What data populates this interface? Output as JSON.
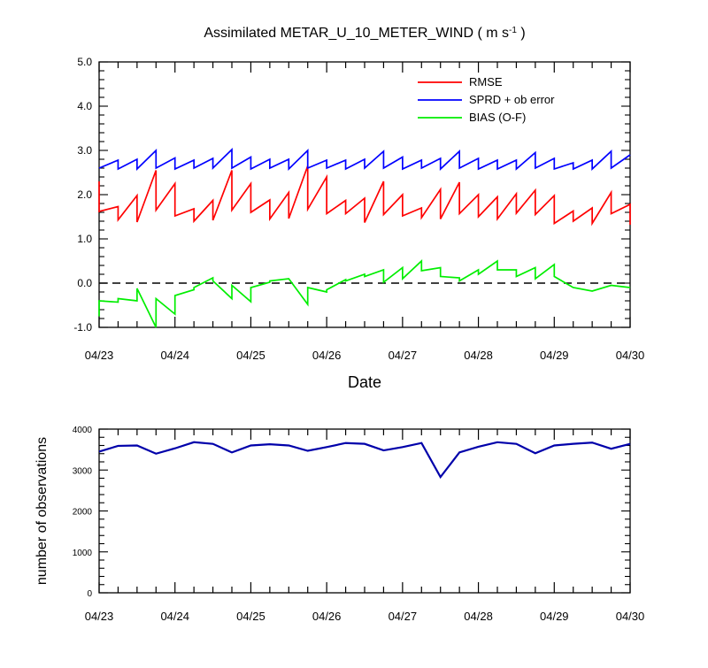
{
  "chart_data": [
    {
      "type": "line",
      "title": "Assimilated METAR_U_10_METER_WIND ( m s",
      "title_superscript": "-1",
      "title_end": " )",
      "xlabel": "Date",
      "ylabel": "",
      "ylim": [
        -1.0,
        5.0
      ],
      "yticks": [
        -1.0,
        0.0,
        1.0,
        2.0,
        3.0,
        4.0,
        5.0
      ],
      "ytick_labels": [
        "-1.0",
        "0.0",
        "1.0",
        "2.0",
        "3.0",
        "4.0",
        "5.0"
      ],
      "xlim": [
        0,
        7
      ],
      "xticks": [
        0,
        1,
        2,
        3,
        4,
        5,
        6,
        7
      ],
      "xtick_labels": [
        "04/23",
        "04/24",
        "04/25",
        "04/26",
        "04/27",
        "04/28",
        "04/29",
        "04/30"
      ],
      "zero_line": "dashed",
      "legend_position": "top-right",
      "colors": {
        "rmse": "#ff0000",
        "sprd": "#0000ff",
        "bias": "#00ee00",
        "zero": "#000000"
      },
      "series": [
        {
          "name": "RMSE",
          "color": "#ff0000",
          "points": [
            [
              0.0,
              2.3
            ],
            [
              0.0,
              1.62
            ],
            [
              0.25,
              1.73
            ],
            [
              0.25,
              1.43
            ],
            [
              0.5,
              1.98
            ],
            [
              0.5,
              1.38
            ],
            [
              0.75,
              2.55
            ],
            [
              0.75,
              1.65
            ],
            [
              1.0,
              2.25
            ],
            [
              1.0,
              1.52
            ],
            [
              1.25,
              1.68
            ],
            [
              1.25,
              1.4
            ],
            [
              1.5,
              1.87
            ],
            [
              1.5,
              1.42
            ],
            [
              1.75,
              2.55
            ],
            [
              1.75,
              1.65
            ],
            [
              2.0,
              2.25
            ],
            [
              2.0,
              1.6
            ],
            [
              2.25,
              1.88
            ],
            [
              2.25,
              1.45
            ],
            [
              2.5,
              2.05
            ],
            [
              2.5,
              1.46
            ],
            [
              2.75,
              2.65
            ],
            [
              2.75,
              1.67
            ],
            [
              3.0,
              2.4
            ],
            [
              3.0,
              1.57
            ],
            [
              3.25,
              1.87
            ],
            [
              3.25,
              1.57
            ],
            [
              3.5,
              1.92
            ],
            [
              3.5,
              1.37
            ],
            [
              3.75,
              2.3
            ],
            [
              3.75,
              1.55
            ],
            [
              4.0,
              2.0
            ],
            [
              4.0,
              1.52
            ],
            [
              4.25,
              1.7
            ],
            [
              4.25,
              1.48
            ],
            [
              4.5,
              2.12
            ],
            [
              4.5,
              1.45
            ],
            [
              4.75,
              2.28
            ],
            [
              4.75,
              1.57
            ],
            [
              5.0,
              2.0
            ],
            [
              5.0,
              1.5
            ],
            [
              5.25,
              1.95
            ],
            [
              5.25,
              1.45
            ],
            [
              5.5,
              2.02
            ],
            [
              5.5,
              1.58
            ],
            [
              5.75,
              2.1
            ],
            [
              5.75,
              1.55
            ],
            [
              6.0,
              1.98
            ],
            [
              6.0,
              1.35
            ],
            [
              6.25,
              1.63
            ],
            [
              6.25,
              1.4
            ],
            [
              6.5,
              1.7
            ],
            [
              6.5,
              1.35
            ],
            [
              6.75,
              2.05
            ],
            [
              6.75,
              1.57
            ],
            [
              7.0,
              1.78
            ],
            [
              7.0,
              1.32
            ]
          ]
        },
        {
          "name": "SPRD + ob error",
          "color": "#0000ff",
          "points": [
            [
              0.0,
              2.6
            ],
            [
              0.25,
              2.78
            ],
            [
              0.25,
              2.58
            ],
            [
              0.5,
              2.8
            ],
            [
              0.5,
              2.58
            ],
            [
              0.75,
              3.0
            ],
            [
              0.75,
              2.6
            ],
            [
              1.0,
              2.83
            ],
            [
              1.0,
              2.58
            ],
            [
              1.25,
              2.78
            ],
            [
              1.25,
              2.6
            ],
            [
              1.5,
              2.82
            ],
            [
              1.5,
              2.6
            ],
            [
              1.75,
              3.02
            ],
            [
              1.75,
              2.6
            ],
            [
              2.0,
              2.85
            ],
            [
              2.0,
              2.58
            ],
            [
              2.25,
              2.8
            ],
            [
              2.25,
              2.6
            ],
            [
              2.5,
              2.8
            ],
            [
              2.5,
              2.58
            ],
            [
              2.75,
              3.0
            ],
            [
              2.75,
              2.6
            ],
            [
              3.0,
              2.78
            ],
            [
              3.0,
              2.6
            ],
            [
              3.25,
              2.78
            ],
            [
              3.25,
              2.58
            ],
            [
              3.5,
              2.8
            ],
            [
              3.5,
              2.6
            ],
            [
              3.75,
              2.98
            ],
            [
              3.75,
              2.6
            ],
            [
              4.0,
              2.85
            ],
            [
              4.0,
              2.58
            ],
            [
              4.25,
              2.78
            ],
            [
              4.25,
              2.6
            ],
            [
              4.5,
              2.82
            ],
            [
              4.5,
              2.58
            ],
            [
              4.75,
              2.98
            ],
            [
              4.75,
              2.6
            ],
            [
              5.0,
              2.82
            ],
            [
              5.0,
              2.58
            ],
            [
              5.25,
              2.78
            ],
            [
              5.25,
              2.58
            ],
            [
              5.5,
              2.78
            ],
            [
              5.5,
              2.58
            ],
            [
              5.75,
              2.95
            ],
            [
              5.75,
              2.6
            ],
            [
              6.0,
              2.82
            ],
            [
              6.0,
              2.58
            ],
            [
              6.25,
              2.72
            ],
            [
              6.25,
              2.58
            ],
            [
              6.5,
              2.78
            ],
            [
              6.5,
              2.58
            ],
            [
              6.75,
              2.98
            ],
            [
              6.75,
              2.6
            ],
            [
              7.0,
              2.9
            ]
          ]
        },
        {
          "name": "BIAS (O-F)",
          "color": "#00ee00",
          "points": [
            [
              0.0,
              -0.75
            ],
            [
              0.0,
              -0.4
            ],
            [
              0.25,
              -0.43
            ],
            [
              0.25,
              -0.35
            ],
            [
              0.5,
              -0.4
            ],
            [
              0.5,
              -0.12
            ],
            [
              0.75,
              -1.0
            ],
            [
              0.75,
              -0.35
            ],
            [
              1.0,
              -0.7
            ],
            [
              1.0,
              -0.28
            ],
            [
              1.25,
              -0.15
            ],
            [
              1.25,
              -0.1
            ],
            [
              1.5,
              0.12
            ],
            [
              1.5,
              0.05
            ],
            [
              1.75,
              -0.35
            ],
            [
              1.75,
              -0.05
            ],
            [
              2.0,
              -0.42
            ],
            [
              2.0,
              -0.1
            ],
            [
              2.25,
              0.02
            ],
            [
              2.25,
              0.05
            ],
            [
              2.5,
              0.1
            ],
            [
              2.5,
              0.1
            ],
            [
              2.75,
              -0.48
            ],
            [
              2.75,
              -0.1
            ],
            [
              3.0,
              -0.2
            ],
            [
              3.0,
              -0.15
            ],
            [
              3.25,
              0.08
            ],
            [
              3.25,
              0.05
            ],
            [
              3.5,
              0.2
            ],
            [
              3.5,
              0.15
            ],
            [
              3.75,
              0.3
            ],
            [
              3.75,
              0.02
            ],
            [
              4.0,
              0.35
            ],
            [
              4.0,
              0.1
            ],
            [
              4.25,
              0.5
            ],
            [
              4.25,
              0.28
            ],
            [
              4.5,
              0.35
            ],
            [
              4.5,
              0.15
            ],
            [
              4.75,
              0.12
            ],
            [
              4.75,
              0.05
            ],
            [
              5.0,
              0.3
            ],
            [
              5.0,
              0.2
            ],
            [
              5.25,
              0.5
            ],
            [
              5.25,
              0.3
            ],
            [
              5.5,
              0.3
            ],
            [
              5.5,
              0.15
            ],
            [
              5.75,
              0.35
            ],
            [
              5.75,
              0.1
            ],
            [
              6.0,
              0.42
            ],
            [
              6.0,
              0.15
            ],
            [
              6.25,
              -0.1
            ],
            [
              6.25,
              -0.1
            ],
            [
              6.5,
              -0.18
            ],
            [
              6.5,
              -0.18
            ],
            [
              6.75,
              -0.05
            ],
            [
              6.75,
              -0.05
            ],
            [
              7.0,
              -0.1
            ]
          ]
        }
      ]
    },
    {
      "type": "line",
      "title": "",
      "xlabel": "",
      "ylabel": "number of observations",
      "ylim": [
        0,
        4000
      ],
      "yticks": [
        0,
        1000,
        2000,
        3000,
        4000
      ],
      "ytick_labels": [
        "0",
        "1000",
        "2000",
        "3000",
        "4000"
      ],
      "xlim": [
        0,
        7
      ],
      "xticks": [
        0,
        1,
        2,
        3,
        4,
        5,
        6,
        7
      ],
      "xtick_labels": [
        "04/23",
        "04/24",
        "04/25",
        "04/26",
        "04/27",
        "04/28",
        "04/29",
        "04/30"
      ],
      "series": [
        {
          "name": "",
          "color": "#0000aa",
          "points": [
            [
              0.0,
              3450
            ],
            [
              0.25,
              3590
            ],
            [
              0.5,
              3600
            ],
            [
              0.75,
              3400
            ],
            [
              1.0,
              3530
            ],
            [
              1.25,
              3680
            ],
            [
              1.5,
              3640
            ],
            [
              1.75,
              3430
            ],
            [
              2.0,
              3600
            ],
            [
              2.25,
              3630
            ],
            [
              2.5,
              3600
            ],
            [
              2.75,
              3470
            ],
            [
              3.0,
              3560
            ],
            [
              3.25,
              3660
            ],
            [
              3.5,
              3640
            ],
            [
              3.75,
              3480
            ],
            [
              4.0,
              3560
            ],
            [
              4.25,
              3660
            ],
            [
              4.5,
              2830
            ],
            [
              4.75,
              3430
            ],
            [
              5.0,
              3570
            ],
            [
              5.25,
              3680
            ],
            [
              5.5,
              3640
            ],
            [
              5.75,
              3410
            ],
            [
              6.0,
              3600
            ],
            [
              6.25,
              3640
            ],
            [
              6.5,
              3670
            ],
            [
              6.75,
              3520
            ],
            [
              7.0,
              3640
            ]
          ]
        }
      ]
    }
  ]
}
